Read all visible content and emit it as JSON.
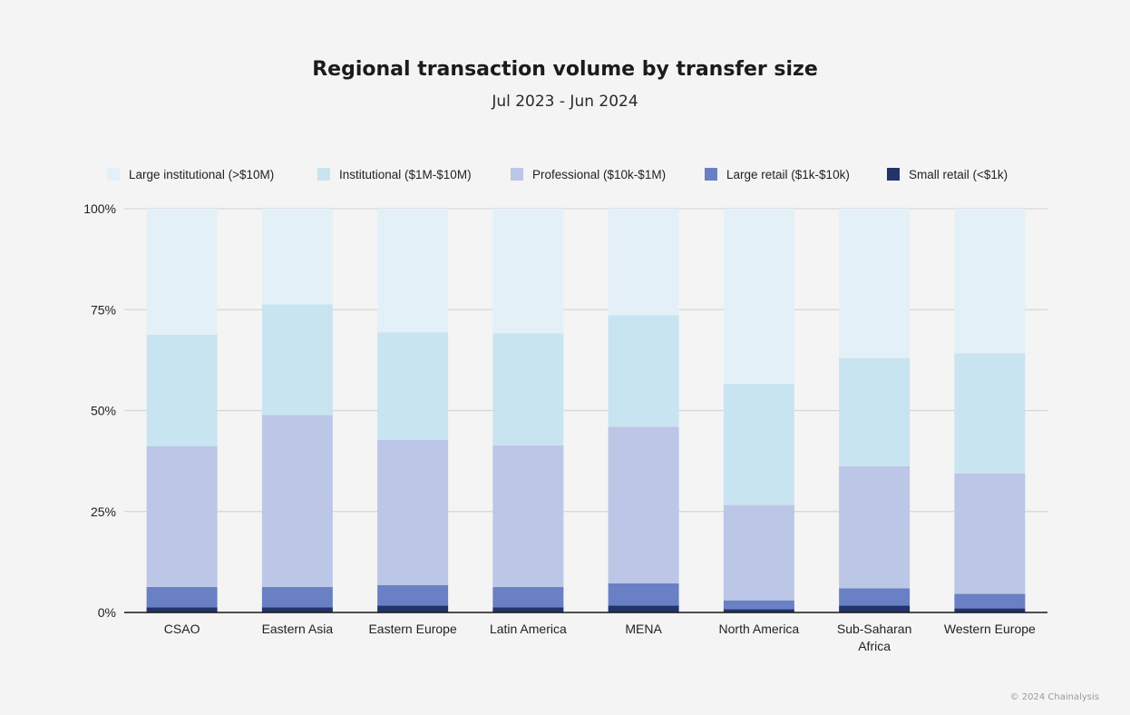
{
  "chart_data": {
    "type": "bar",
    "stacked": true,
    "percent": true,
    "title": "Regional transaction volume by transfer size",
    "subtitle": "Jul 2023 - Jun 2024",
    "xlabel": "",
    "ylabel": "",
    "ylim": [
      0,
      100
    ],
    "yticks": [
      "0%",
      "25%",
      "50%",
      "75%",
      "100%"
    ],
    "ytick_values": [
      0,
      25,
      50,
      75,
      100
    ],
    "legend_position": "top",
    "grid": true,
    "categories": [
      [
        "CSAO"
      ],
      [
        "Eastern Asia"
      ],
      [
        "Eastern Europe"
      ],
      [
        "Latin America"
      ],
      [
        "MENA"
      ],
      [
        "North America"
      ],
      [
        "Sub-Saharan",
        "Africa"
      ],
      [
        "Western Europe"
      ]
    ],
    "series": [
      {
        "name": "Small retail (<$1k)",
        "color": "#23336b",
        "values": [
          1.3,
          1.3,
          1.7,
          1.3,
          1.7,
          0.8,
          1.7,
          1.0
        ]
      },
      {
        "name": "Large retail ($1k-$10k)",
        "color": "#6a80c4",
        "values": [
          5.0,
          5.0,
          5.1,
          5.0,
          5.5,
          2.2,
          4.3,
          3.6
        ]
      },
      {
        "name": "Professional ($10k-$1M)",
        "color": "#bcc6e6",
        "values": [
          34.9,
          42.6,
          35.9,
          35.1,
          38.8,
          23.6,
          30.2,
          29.8
        ]
      },
      {
        "name": "Institutional ($1M-$10M)",
        "color": "#c9e4f1",
        "values": [
          27.6,
          27.4,
          26.7,
          27.7,
          27.6,
          30.0,
          26.8,
          29.8
        ]
      },
      {
        "name": "Large institutional (>$10M)",
        "color": "#e4f0f7",
        "values": [
          31.2,
          23.7,
          30.6,
          30.9,
          26.4,
          43.4,
          37.0,
          35.8
        ]
      }
    ],
    "legend_order": [
      "Large institutional (>$10M)",
      "Institutional ($1M-$10M)",
      "Professional ($10k-$1M)",
      "Large retail ($1k-$10k)",
      "Small retail (<$1k)"
    ]
  },
  "footer": "© 2024 Chainalysis"
}
